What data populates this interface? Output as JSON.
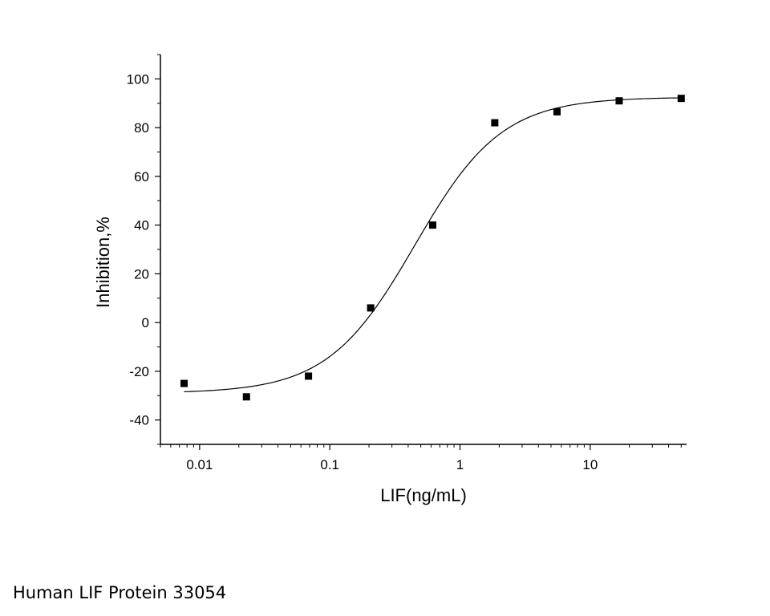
{
  "caption": "Human LIF Protein 33054",
  "chart_data": {
    "type": "scatter",
    "xlabel": "LIF(ng/mL)",
    "ylabel": "Inhibition,%",
    "xscale": "log",
    "xlim": [
      0.005,
      55
    ],
    "ylim": [
      -50,
      110
    ],
    "x_ticks": [
      0.01,
      0.1,
      1,
      10
    ],
    "x_tick_labels": [
      "0.01",
      "0.1",
      "1",
      "10"
    ],
    "y_ticks": [
      -40,
      -20,
      0,
      20,
      40,
      60,
      80,
      100
    ],
    "y_tick_labels": [
      "-40",
      "-20",
      "0",
      "20",
      "40",
      "60",
      "80",
      "100"
    ],
    "grid": false,
    "legend": "none",
    "marker_color": "#000000",
    "series": [
      {
        "x": [
          0.0076,
          0.0229,
          0.0686,
          0.206,
          0.617,
          1.85,
          5.56,
          16.7,
          50
        ],
        "y": [
          -25,
          -30.5,
          -22,
          6,
          40,
          82,
          86.5,
          91,
          92
        ]
      }
    ],
    "fit_curve": {
      "model": "four-parameter logistic",
      "bottom": -29,
      "top": 92.5,
      "ec50": 0.45,
      "hill": 1.3,
      "color": "#000000"
    }
  }
}
